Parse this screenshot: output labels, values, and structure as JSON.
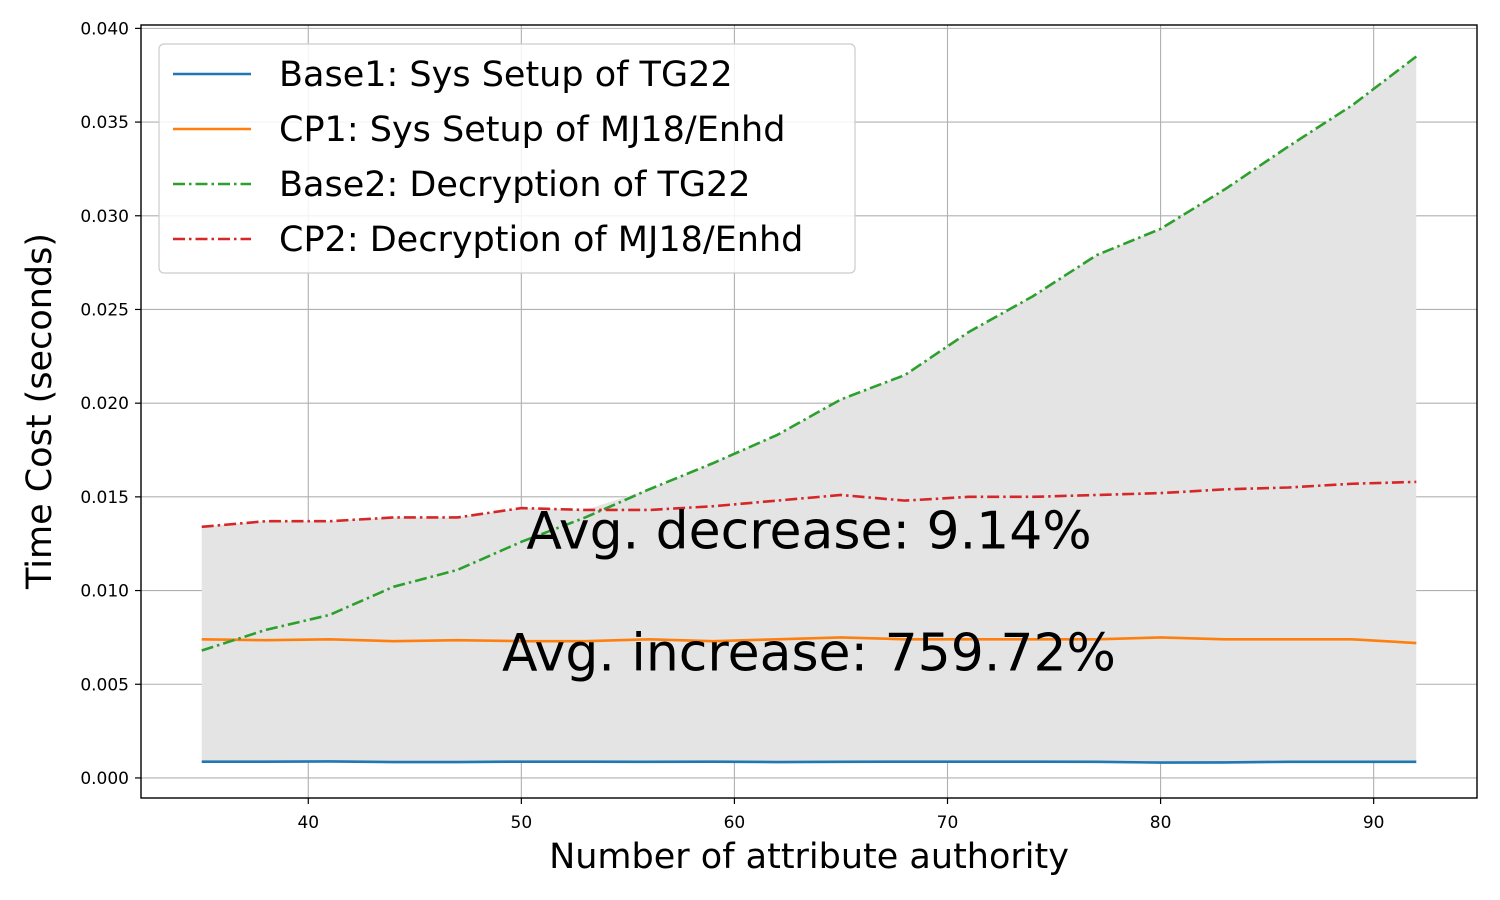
{
  "chart_data": {
    "type": "line",
    "title": "",
    "xlabel": "Number of attribute authority",
    "ylabel": "Time Cost (seconds)",
    "xlim": [
      32.15,
      94.85
    ],
    "ylim": [
      -0.00107,
      0.04018
    ],
    "x_ticks": [
      40,
      50,
      60,
      70,
      80,
      90
    ],
    "y_ticks": [
      0.0,
      0.005,
      0.01,
      0.015,
      0.02,
      0.025,
      0.03,
      0.035,
      0.04
    ],
    "x_tick_labels": [
      "40",
      "50",
      "60",
      "70",
      "80",
      "90"
    ],
    "y_tick_labels": [
      "0.000",
      "0.005",
      "0.010",
      "0.015",
      "0.020",
      "0.025",
      "0.030",
      "0.035",
      "0.040"
    ],
    "grid": true,
    "legend_position": "top-left",
    "x": [
      35,
      38,
      41,
      44,
      47,
      50,
      53,
      56,
      59,
      62,
      65,
      68,
      71,
      74,
      77,
      80,
      83,
      86,
      89,
      92
    ],
    "series": [
      {
        "name": "Base1: Sys Setup of TG22",
        "color": "#1f77b4",
        "style": "solid",
        "values": [
          0.00087,
          0.00087,
          0.00088,
          0.00085,
          0.00085,
          0.00087,
          0.00087,
          0.00086,
          0.00087,
          0.00085,
          0.00086,
          0.00087,
          0.00087,
          0.00087,
          0.00086,
          0.00082,
          0.00083,
          0.00086,
          0.00086,
          0.00086
        ]
      },
      {
        "name": "CP1: Sys Setup of MJ18/Enhd",
        "color": "#ff7f0e",
        "style": "solid",
        "values": [
          0.0074,
          0.00735,
          0.0074,
          0.0073,
          0.00735,
          0.0073,
          0.0073,
          0.0074,
          0.0073,
          0.0074,
          0.0075,
          0.0074,
          0.0074,
          0.0074,
          0.0074,
          0.0075,
          0.0074,
          0.0074,
          0.0074,
          0.0072
        ]
      },
      {
        "name": "Base2: Decryption of TG22",
        "color": "#2ca02c",
        "style": "dashdot",
        "values": [
          0.0068,
          0.0079,
          0.0087,
          0.0102,
          0.0111,
          0.0126,
          0.0139,
          0.0154,
          0.0168,
          0.0183,
          0.0202,
          0.0215,
          0.0238,
          0.0257,
          0.0279,
          0.0293,
          0.0314,
          0.0337,
          0.0359,
          0.0385
        ]
      },
      {
        "name": "CP2: Decryption of MJ18/Enhd",
        "color": "#d62728",
        "style": "dashdot",
        "values": [
          0.0134,
          0.0137,
          0.0137,
          0.0139,
          0.0139,
          0.0144,
          0.0143,
          0.0143,
          0.0145,
          0.0148,
          0.0151,
          0.0148,
          0.015,
          0.015,
          0.0151,
          0.0152,
          0.0154,
          0.0155,
          0.0157,
          0.0158
        ]
      }
    ],
    "fill": {
      "between_series": [
        0,
        1,
        2,
        3
      ],
      "color": "#e4e4e4"
    },
    "annotations": [
      {
        "text": "Avg. decrease: 9.14%",
        "x": 63.5,
        "y": 0.0133
      },
      {
        "text": "Avg. increase: 759.72%",
        "x": 63.5,
        "y": 0.0068
      }
    ]
  }
}
